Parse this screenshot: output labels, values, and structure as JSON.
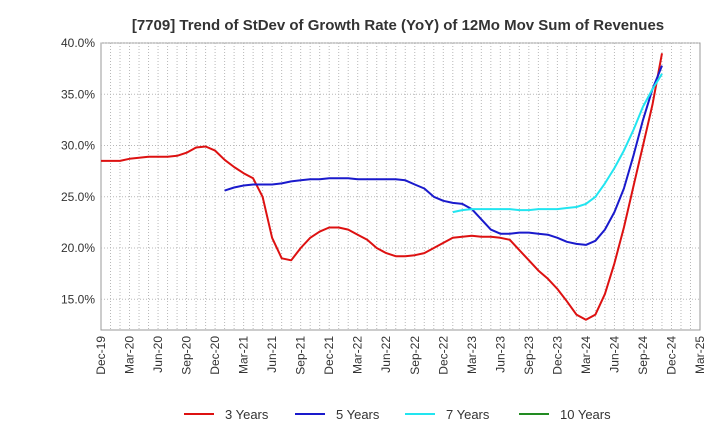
{
  "chart_data": {
    "type": "line",
    "title": "[7709]  Trend of StDev of Growth Rate (YoY) of 12Mo Mov Sum of Revenues",
    "xlabel": "",
    "ylabel": "",
    "x_ticks": [
      "Dec-19",
      "Mar-20",
      "Jun-20",
      "Sep-20",
      "Dec-20",
      "Mar-21",
      "Jun-21",
      "Sep-21",
      "Dec-21",
      "Mar-22",
      "Jun-22",
      "Sep-22",
      "Dec-22",
      "Mar-23",
      "Jun-23",
      "Sep-23",
      "Dec-23",
      "Mar-24",
      "Jun-24",
      "Sep-24",
      "Dec-24",
      "Mar-25"
    ],
    "y_ticks": [
      "15.0%",
      "20.0%",
      "25.0%",
      "30.0%",
      "35.0%",
      "40.0%"
    ],
    "ylim": [
      12.0,
      40.0
    ],
    "xlim_months": [
      0,
      63
    ],
    "grid": true,
    "series": [
      {
        "name": "3 Years",
        "color": "#dd1111",
        "x": [
          0,
          1,
          2,
          3,
          4,
          5,
          6,
          7,
          8,
          9,
          10,
          11,
          12,
          13,
          14,
          15,
          16,
          17,
          18,
          19,
          20,
          21,
          22,
          23,
          24,
          25,
          26,
          27,
          28,
          29,
          30,
          31,
          32,
          33,
          34,
          35,
          36,
          37,
          38,
          39,
          40,
          41,
          42,
          43,
          44,
          45,
          46,
          47,
          48,
          49,
          50,
          51,
          52,
          53,
          54,
          55,
          56,
          57,
          58,
          59,
          60
        ],
        "values": [
          28.5,
          28.5,
          28.5,
          28.7,
          28.8,
          28.9,
          28.9,
          28.9,
          29.0,
          29.3,
          29.8,
          29.9,
          29.5,
          28.6,
          27.9,
          27.3,
          26.8,
          25.0,
          21.0,
          19.0,
          18.8,
          20.0,
          21.0,
          21.6,
          22.0,
          22.0,
          21.8,
          21.3,
          20.8,
          20.0,
          19.5,
          19.2,
          19.2,
          19.3,
          19.5,
          20.0,
          20.5,
          21.0,
          21.1,
          21.2,
          21.1,
          21.1,
          21.0,
          20.8,
          19.8,
          18.8,
          17.8,
          17.0,
          16.0,
          14.8,
          13.5,
          13.0,
          13.5,
          15.5,
          18.5,
          22.0,
          26.0,
          30.0,
          34.0,
          39.0,
          null
        ],
        "values_note": "monthly points from Dec-19"
      },
      {
        "name": "5 Years",
        "color": "#1a1acc",
        "x": [
          13,
          14,
          15,
          16,
          17,
          18,
          19,
          20,
          21,
          22,
          23,
          24,
          25,
          26,
          27,
          28,
          29,
          30,
          31,
          32,
          33,
          34,
          35,
          36,
          37,
          38,
          39,
          40,
          41,
          42,
          43,
          44,
          45,
          46,
          47,
          48,
          49,
          50,
          51,
          52,
          53,
          54,
          55,
          56,
          57,
          58,
          59
        ],
        "values": [
          25.6,
          25.9,
          26.1,
          26.2,
          26.2,
          26.2,
          26.3,
          26.5,
          26.6,
          26.7,
          26.7,
          26.8,
          26.8,
          26.8,
          26.7,
          26.7,
          26.7,
          26.7,
          26.7,
          26.6,
          26.2,
          25.8,
          25.0,
          24.6,
          24.4,
          24.3,
          23.8,
          22.8,
          21.8,
          21.4,
          21.4,
          21.5,
          21.5,
          21.4,
          21.3,
          21.0,
          20.6,
          20.4,
          20.3,
          20.7,
          21.8,
          23.5,
          25.8,
          29.0,
          32.5,
          35.5,
          37.8
        ],
        "values_note": "monthly points"
      },
      {
        "name": "7 Years",
        "color": "#22e5f0",
        "x": [
          37,
          38,
          39,
          40,
          41,
          42,
          43,
          44,
          45,
          46,
          47,
          48,
          49,
          50,
          51,
          52,
          53,
          54,
          55,
          56,
          57,
          58,
          59
        ],
        "values": [
          23.5,
          23.7,
          23.8,
          23.8,
          23.8,
          23.8,
          23.8,
          23.7,
          23.7,
          23.8,
          23.8,
          23.8,
          23.9,
          24.0,
          24.3,
          25.0,
          26.3,
          27.8,
          29.5,
          31.5,
          33.8,
          35.5,
          37.0
        ],
        "values_note": "monthly points"
      },
      {
        "name": "10 Years",
        "color": "#228b22",
        "x": [],
        "values": []
      }
    ],
    "legend": {
      "placement": "bottom",
      "entries": [
        "3 Years",
        "5 Years",
        "7 Years",
        "10 Years"
      ]
    }
  }
}
